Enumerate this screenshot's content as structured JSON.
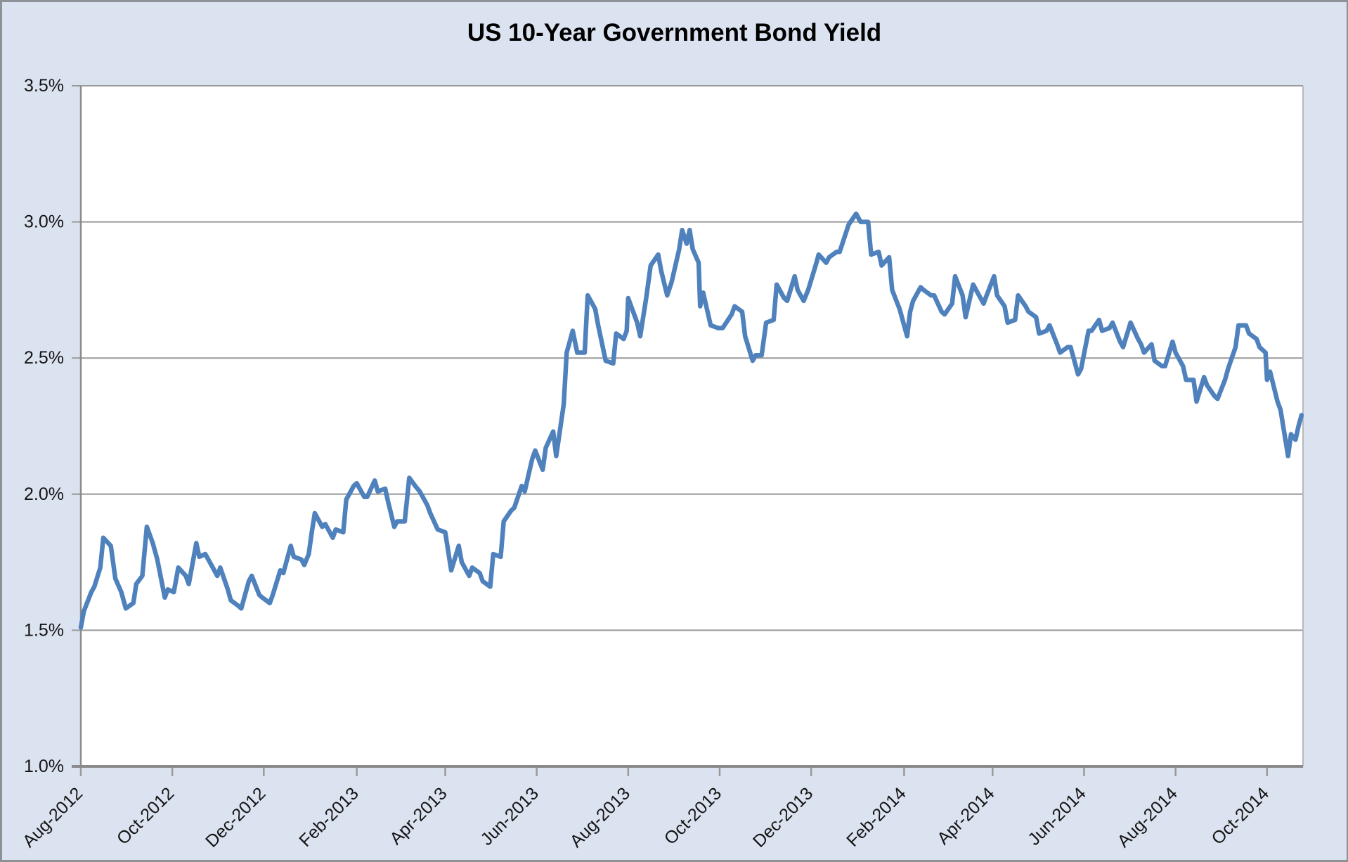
{
  "colors": {
    "chart_background": "#dce3f0",
    "plot_background": "#ffffff",
    "outer_border": "#8e9196",
    "gridline": "#9a9a9a",
    "axis_line": "#8a8a8a",
    "minor_border": "#b8b8b8",
    "title_text": "#000000",
    "label_text": "#141414",
    "series_line": "#4f81bd"
  },
  "chart_data": {
    "type": "line",
    "title": "US 10-Year Government Bond Yield",
    "xlabel": "",
    "ylabel": "",
    "legend": "none",
    "grid": "horizontal",
    "x_axis": {
      "min_date": "2012-08-01",
      "max_date": "2014-10-25",
      "label_rotation": -45,
      "ticks": [
        {
          "date": "2012-08-01",
          "label": "Aug-2012"
        },
        {
          "date": "2012-10-01",
          "label": "Oct-2012"
        },
        {
          "date": "2012-12-01",
          "label": "Dec-2012"
        },
        {
          "date": "2013-02-01",
          "label": "Feb-2013"
        },
        {
          "date": "2013-04-01",
          "label": "Apr-2013"
        },
        {
          "date": "2013-06-01",
          "label": "Jun-2013"
        },
        {
          "date": "2013-08-01",
          "label": "Aug-2013"
        },
        {
          "date": "2013-10-01",
          "label": "Oct-2013"
        },
        {
          "date": "2013-12-01",
          "label": "Dec-2013"
        },
        {
          "date": "2014-02-01",
          "label": "Feb-2014"
        },
        {
          "date": "2014-04-01",
          "label": "Apr-2014"
        },
        {
          "date": "2014-06-01",
          "label": "Jun-2014"
        },
        {
          "date": "2014-08-01",
          "label": "Aug-2014"
        },
        {
          "date": "2014-10-01",
          "label": "Oct-2014"
        }
      ]
    },
    "y_axis": {
      "min": 1.0,
      "max": 3.5,
      "step": 0.5,
      "ticks": [
        {
          "value": 3.5,
          "label": "3.5%"
        },
        {
          "value": 3.0,
          "label": "3.0%"
        },
        {
          "value": 2.5,
          "label": "2.5%"
        },
        {
          "value": 2.0,
          "label": "2.0%"
        },
        {
          "value": 1.5,
          "label": "1.5%"
        },
        {
          "value": 1.0,
          "label": "1.0%"
        }
      ]
    },
    "series": [
      {
        "name": "US 10-Year Government Bond Yield",
        "color": "#4f81bd",
        "stroke_width": 6.5,
        "points": [
          [
            "2012-08-01",
            1.51
          ],
          [
            "2012-08-03",
            1.57
          ],
          [
            "2012-08-08",
            1.64
          ],
          [
            "2012-08-10",
            1.66
          ],
          [
            "2012-08-14",
            1.73
          ],
          [
            "2012-08-16",
            1.84
          ],
          [
            "2012-08-21",
            1.81
          ],
          [
            "2012-08-24",
            1.69
          ],
          [
            "2012-08-28",
            1.64
          ],
          [
            "2012-08-31",
            1.58
          ],
          [
            "2012-09-05",
            1.6
          ],
          [
            "2012-09-07",
            1.67
          ],
          [
            "2012-09-11",
            1.7
          ],
          [
            "2012-09-14",
            1.88
          ],
          [
            "2012-09-18",
            1.82
          ],
          [
            "2012-09-21",
            1.76
          ],
          [
            "2012-09-26",
            1.62
          ],
          [
            "2012-09-28",
            1.65
          ],
          [
            "2012-10-02",
            1.64
          ],
          [
            "2012-10-05",
            1.73
          ],
          [
            "2012-10-10",
            1.7
          ],
          [
            "2012-10-12",
            1.67
          ],
          [
            "2012-10-17",
            1.82
          ],
          [
            "2012-10-19",
            1.77
          ],
          [
            "2012-10-23",
            1.78
          ],
          [
            "2012-10-26",
            1.75
          ],
          [
            "2012-10-31",
            1.7
          ],
          [
            "2012-11-02",
            1.73
          ],
          [
            "2012-11-07",
            1.65
          ],
          [
            "2012-11-09",
            1.61
          ],
          [
            "2012-11-14",
            1.59
          ],
          [
            "2012-11-16",
            1.58
          ],
          [
            "2012-11-21",
            1.68
          ],
          [
            "2012-11-23",
            1.7
          ],
          [
            "2012-11-28",
            1.63
          ],
          [
            "2012-11-30",
            1.62
          ],
          [
            "2012-12-05",
            1.6
          ],
          [
            "2012-12-07",
            1.63
          ],
          [
            "2012-12-12",
            1.72
          ],
          [
            "2012-12-14",
            1.71
          ],
          [
            "2012-12-19",
            1.81
          ],
          [
            "2012-12-21",
            1.77
          ],
          [
            "2012-12-26",
            1.76
          ],
          [
            "2012-12-28",
            1.74
          ],
          [
            "2012-12-31",
            1.78
          ],
          [
            "2013-01-02",
            1.86
          ],
          [
            "2013-01-04",
            1.93
          ],
          [
            "2013-01-09",
            1.88
          ],
          [
            "2013-01-11",
            1.89
          ],
          [
            "2013-01-16",
            1.84
          ],
          [
            "2013-01-18",
            1.87
          ],
          [
            "2013-01-23",
            1.86
          ],
          [
            "2013-01-25",
            1.98
          ],
          [
            "2013-01-30",
            2.03
          ],
          [
            "2013-02-01",
            2.04
          ],
          [
            "2013-02-06",
            1.99
          ],
          [
            "2013-02-08",
            1.99
          ],
          [
            "2013-02-13",
            2.05
          ],
          [
            "2013-02-15",
            2.01
          ],
          [
            "2013-02-20",
            2.02
          ],
          [
            "2013-02-22",
            1.97
          ],
          [
            "2013-02-26",
            1.88
          ],
          [
            "2013-02-28",
            1.9
          ],
          [
            "2013-03-05",
            1.9
          ],
          [
            "2013-03-08",
            2.06
          ],
          [
            "2013-03-12",
            2.03
          ],
          [
            "2013-03-15",
            2.01
          ],
          [
            "2013-03-20",
            1.96
          ],
          [
            "2013-03-22",
            1.93
          ],
          [
            "2013-03-27",
            1.87
          ],
          [
            "2013-04-01",
            1.86
          ],
          [
            "2013-04-05",
            1.72
          ],
          [
            "2013-04-10",
            1.81
          ],
          [
            "2013-04-12",
            1.75
          ],
          [
            "2013-04-17",
            1.7
          ],
          [
            "2013-04-19",
            1.73
          ],
          [
            "2013-04-24",
            1.71
          ],
          [
            "2013-04-26",
            1.68
          ],
          [
            "2013-05-01",
            1.66
          ],
          [
            "2013-05-03",
            1.78
          ],
          [
            "2013-05-08",
            1.77
          ],
          [
            "2013-05-10",
            1.9
          ],
          [
            "2013-05-15",
            1.94
          ],
          [
            "2013-05-17",
            1.95
          ],
          [
            "2013-05-22",
            2.03
          ],
          [
            "2013-05-24",
            2.01
          ],
          [
            "2013-05-29",
            2.13
          ],
          [
            "2013-05-31",
            2.16
          ],
          [
            "2013-06-05",
            2.09
          ],
          [
            "2013-06-07",
            2.17
          ],
          [
            "2013-06-12",
            2.23
          ],
          [
            "2013-06-14",
            2.14
          ],
          [
            "2013-06-19",
            2.33
          ],
          [
            "2013-06-21",
            2.52
          ],
          [
            "2013-06-25",
            2.6
          ],
          [
            "2013-06-28",
            2.52
          ],
          [
            "2013-07-03",
            2.52
          ],
          [
            "2013-07-05",
            2.73
          ],
          [
            "2013-07-10",
            2.68
          ],
          [
            "2013-07-12",
            2.62
          ],
          [
            "2013-07-17",
            2.49
          ],
          [
            "2013-07-22",
            2.48
          ],
          [
            "2013-07-24",
            2.59
          ],
          [
            "2013-07-29",
            2.57
          ],
          [
            "2013-07-31",
            2.6
          ],
          [
            "2013-08-01",
            2.72
          ],
          [
            "2013-08-07",
            2.63
          ],
          [
            "2013-08-09",
            2.58
          ],
          [
            "2013-08-13",
            2.72
          ],
          [
            "2013-08-16",
            2.84
          ],
          [
            "2013-08-21",
            2.88
          ],
          [
            "2013-08-23",
            2.82
          ],
          [
            "2013-08-27",
            2.73
          ],
          [
            "2013-08-30",
            2.78
          ],
          [
            "2013-09-04",
            2.9
          ],
          [
            "2013-09-06",
            2.97
          ],
          [
            "2013-09-09",
            2.92
          ],
          [
            "2013-09-11",
            2.97
          ],
          [
            "2013-09-13",
            2.9
          ],
          [
            "2013-09-17",
            2.85
          ],
          [
            "2013-09-18",
            2.69
          ],
          [
            "2013-09-20",
            2.74
          ],
          [
            "2013-09-25",
            2.62
          ],
          [
            "2013-09-30",
            2.61
          ],
          [
            "2013-10-03",
            2.61
          ],
          [
            "2013-10-09",
            2.66
          ],
          [
            "2013-10-11",
            2.69
          ],
          [
            "2013-10-16",
            2.67
          ],
          [
            "2013-10-18",
            2.58
          ],
          [
            "2013-10-23",
            2.49
          ],
          [
            "2013-10-25",
            2.51
          ],
          [
            "2013-10-29",
            2.51
          ],
          [
            "2013-11-01",
            2.63
          ],
          [
            "2013-11-06",
            2.64
          ],
          [
            "2013-11-08",
            2.77
          ],
          [
            "2013-11-13",
            2.72
          ],
          [
            "2013-11-15",
            2.71
          ],
          [
            "2013-11-20",
            2.8
          ],
          [
            "2013-11-22",
            2.75
          ],
          [
            "2013-11-26",
            2.71
          ],
          [
            "2013-11-29",
            2.75
          ],
          [
            "2013-12-04",
            2.84
          ],
          [
            "2013-12-06",
            2.88
          ],
          [
            "2013-12-11",
            2.85
          ],
          [
            "2013-12-13",
            2.87
          ],
          [
            "2013-12-18",
            2.89
          ],
          [
            "2013-12-20",
            2.89
          ],
          [
            "2013-12-26",
            2.99
          ],
          [
            "2013-12-31",
            3.03
          ],
          [
            "2014-01-03",
            3.0
          ],
          [
            "2014-01-08",
            3.0
          ],
          [
            "2014-01-10",
            2.88
          ],
          [
            "2014-01-15",
            2.89
          ],
          [
            "2014-01-17",
            2.84
          ],
          [
            "2014-01-22",
            2.87
          ],
          [
            "2014-01-24",
            2.75
          ],
          [
            "2014-01-29",
            2.68
          ],
          [
            "2014-02-03",
            2.58
          ],
          [
            "2014-02-05",
            2.67
          ],
          [
            "2014-02-07",
            2.71
          ],
          [
            "2014-02-12",
            2.76
          ],
          [
            "2014-02-14",
            2.75
          ],
          [
            "2014-02-19",
            2.73
          ],
          [
            "2014-02-21",
            2.73
          ],
          [
            "2014-02-26",
            2.67
          ],
          [
            "2014-02-28",
            2.66
          ],
          [
            "2014-03-05",
            2.7
          ],
          [
            "2014-03-07",
            2.8
          ],
          [
            "2014-03-12",
            2.73
          ],
          [
            "2014-03-14",
            2.65
          ],
          [
            "2014-03-19",
            2.77
          ],
          [
            "2014-03-21",
            2.75
          ],
          [
            "2014-03-26",
            2.7
          ],
          [
            "2014-03-28",
            2.73
          ],
          [
            "2014-04-02",
            2.8
          ],
          [
            "2014-04-04",
            2.73
          ],
          [
            "2014-04-09",
            2.69
          ],
          [
            "2014-04-11",
            2.63
          ],
          [
            "2014-04-16",
            2.64
          ],
          [
            "2014-04-18",
            2.73
          ],
          [
            "2014-04-23",
            2.69
          ],
          [
            "2014-04-25",
            2.67
          ],
          [
            "2014-04-30",
            2.65
          ],
          [
            "2014-05-02",
            2.59
          ],
          [
            "2014-05-07",
            2.6
          ],
          [
            "2014-05-09",
            2.62
          ],
          [
            "2014-05-14",
            2.55
          ],
          [
            "2014-05-16",
            2.52
          ],
          [
            "2014-05-21",
            2.54
          ],
          [
            "2014-05-23",
            2.54
          ],
          [
            "2014-05-28",
            2.44
          ],
          [
            "2014-05-30",
            2.46
          ],
          [
            "2014-06-04",
            2.6
          ],
          [
            "2014-06-06",
            2.6
          ],
          [
            "2014-06-11",
            2.64
          ],
          [
            "2014-06-13",
            2.6
          ],
          [
            "2014-06-18",
            2.61
          ],
          [
            "2014-06-20",
            2.63
          ],
          [
            "2014-06-25",
            2.56
          ],
          [
            "2014-06-27",
            2.54
          ],
          [
            "2014-07-02",
            2.63
          ],
          [
            "2014-07-07",
            2.57
          ],
          [
            "2014-07-09",
            2.55
          ],
          [
            "2014-07-11",
            2.52
          ],
          [
            "2014-07-16",
            2.55
          ],
          [
            "2014-07-18",
            2.49
          ],
          [
            "2014-07-23",
            2.47
          ],
          [
            "2014-07-25",
            2.47
          ],
          [
            "2014-07-30",
            2.56
          ],
          [
            "2014-08-01",
            2.52
          ],
          [
            "2014-08-06",
            2.47
          ],
          [
            "2014-08-08",
            2.42
          ],
          [
            "2014-08-13",
            2.42
          ],
          [
            "2014-08-15",
            2.34
          ],
          [
            "2014-08-20",
            2.43
          ],
          [
            "2014-08-22",
            2.4
          ],
          [
            "2014-08-27",
            2.36
          ],
          [
            "2014-08-29",
            2.35
          ],
          [
            "2014-09-03",
            2.42
          ],
          [
            "2014-09-05",
            2.46
          ],
          [
            "2014-09-10",
            2.54
          ],
          [
            "2014-09-12",
            2.62
          ],
          [
            "2014-09-17",
            2.62
          ],
          [
            "2014-09-19",
            2.59
          ],
          [
            "2014-09-24",
            2.57
          ],
          [
            "2014-09-26",
            2.54
          ],
          [
            "2014-09-30",
            2.52
          ],
          [
            "2014-10-01",
            2.42
          ],
          [
            "2014-10-03",
            2.45
          ],
          [
            "2014-10-08",
            2.34
          ],
          [
            "2014-10-10",
            2.31
          ],
          [
            "2014-10-15",
            2.14
          ],
          [
            "2014-10-17",
            2.22
          ],
          [
            "2014-10-20",
            2.2
          ],
          [
            "2014-10-22",
            2.25
          ],
          [
            "2014-10-24",
            2.29
          ]
        ]
      }
    ]
  }
}
